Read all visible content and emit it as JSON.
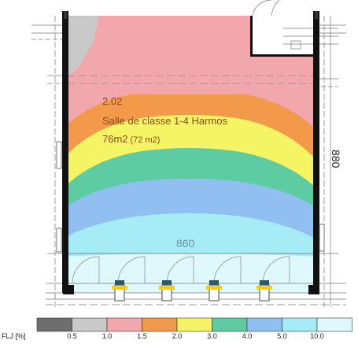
{
  "room": {
    "number": "2.02",
    "name": "Salle de classe 1-4 Harmos",
    "area_main": "76m2",
    "area_secondary": "(72 m2)",
    "depth_dimension": "880",
    "width_dimension": "860"
  },
  "legend": {
    "title": "FLJ [%]",
    "ticks": [
      "0.5",
      "1.0",
      "1.5",
      "2.0",
      "3.0",
      "4.0",
      "5.0",
      "10.0"
    ],
    "colors": [
      "#6e6e6e",
      "#c9c9c9",
      "#f2a7ad",
      "#f39a4a",
      "#f4f465",
      "#5ecca2",
      "#92bff2",
      "#a6ecf6",
      "#dff8fb"
    ]
  },
  "colors": {
    "wall": "#111111",
    "dim_line": "#777777",
    "label_text": "#8a4a1a",
    "dimension_text": "#6c90a4"
  }
}
